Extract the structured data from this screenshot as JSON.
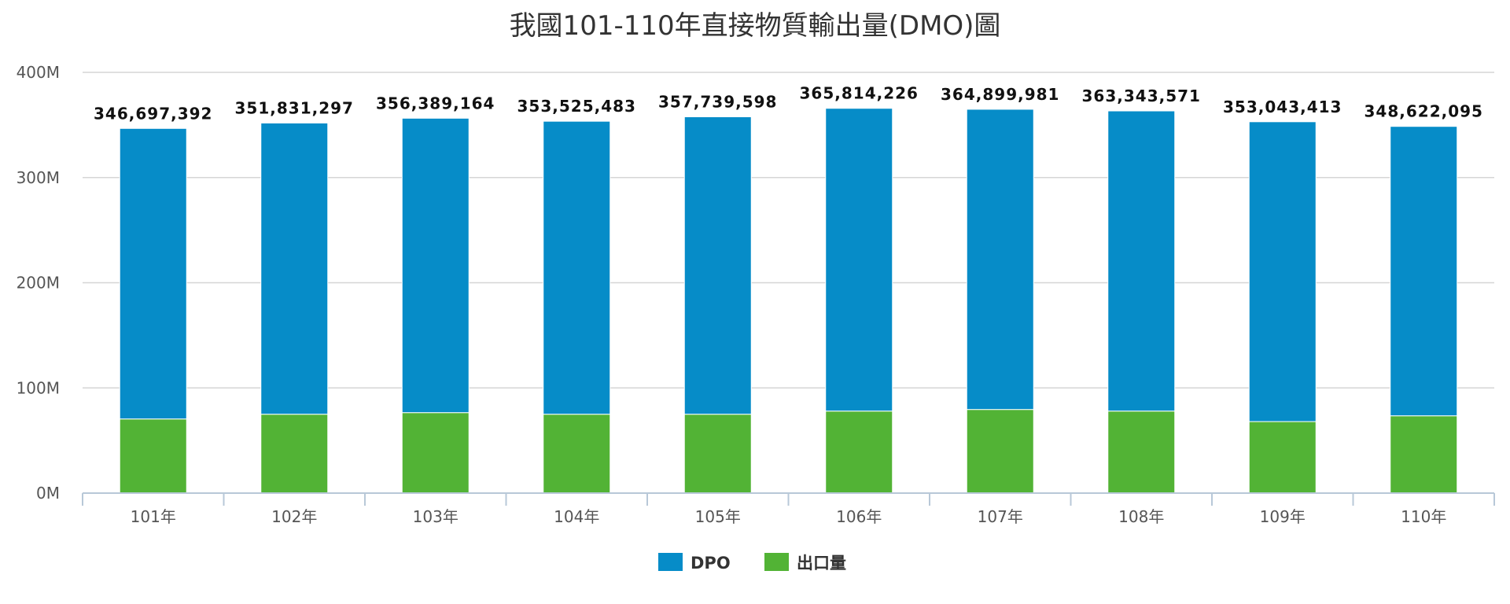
{
  "chart_data": {
    "type": "bar",
    "stacked": true,
    "title": "我國101-110年直接物質輸出量(DMO)圖",
    "xlabel": "",
    "ylabel": "",
    "categories": [
      "101年",
      "102年",
      "103年",
      "104年",
      "105年",
      "106年",
      "107年",
      "108年",
      "109年",
      "110年"
    ],
    "totals": [
      346697392,
      351831297,
      356389164,
      353525483,
      357739598,
      365814226,
      364899981,
      363343571,
      353043413,
      348622095
    ],
    "total_labels": [
      "346,697,392",
      "351,831,297",
      "356,389,164",
      "353,525,483",
      "357,739,598",
      "365,814,226",
      "364,899,981",
      "363,343,571",
      "353,043,413",
      "348,622,095"
    ],
    "series": [
      {
        "name": "出口量",
        "color": "#52b335",
        "values": [
          70500000,
          75000000,
          76500000,
          75000000,
          75000000,
          78000000,
          79500000,
          78000000,
          68000000,
          73500000
        ]
      },
      {
        "name": "DPO",
        "color": "#068cc8",
        "values": [
          276197392,
          276831297,
          279889164,
          278525483,
          282739598,
          287814226,
          285399981,
          285343571,
          285043413,
          275122095
        ]
      }
    ],
    "legend_order": [
      "DPO",
      "出口量"
    ],
    "yticks": [
      0,
      100000000,
      200000000,
      300000000,
      400000000
    ],
    "ytick_labels": [
      "0M",
      "100M",
      "200M",
      "300M",
      "400M"
    ],
    "ylim": [
      0,
      400000000
    ],
    "grid": true,
    "legend_position": "bottom-center"
  }
}
